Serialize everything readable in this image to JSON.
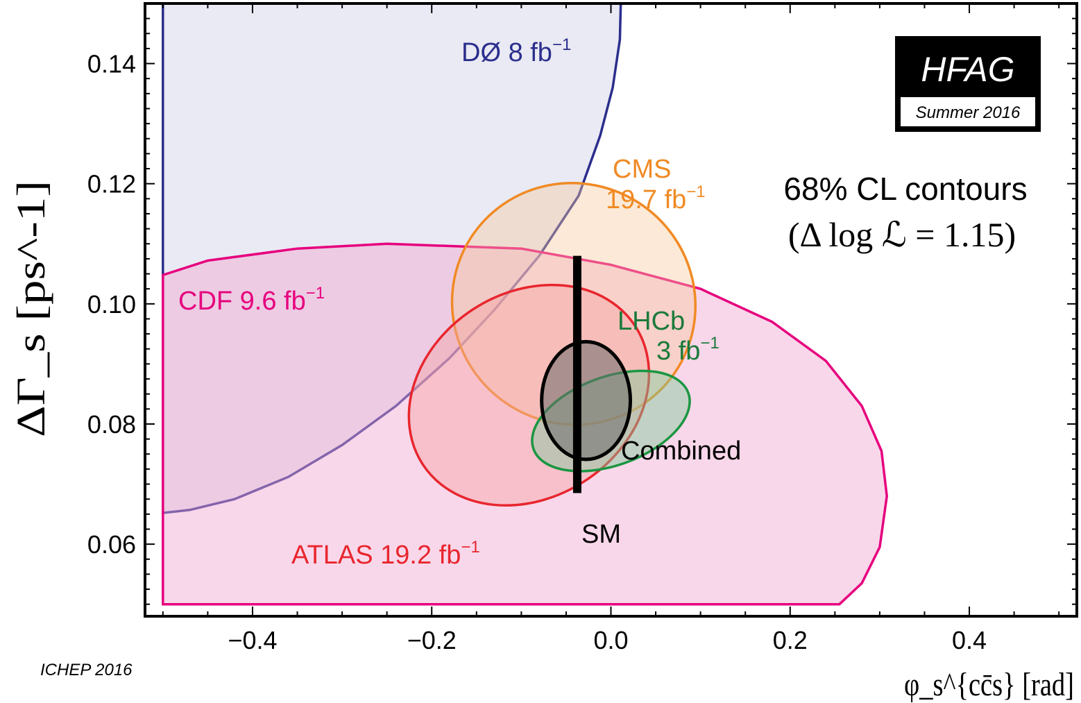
{
  "chart_data": {
    "type": "contour",
    "title": "68% CL contours",
    "subtitle": "(Δ log ℒ = 1.15)",
    "xlabel": "φ_s^{cc̄s} [rad]",
    "ylabel": "ΔΓ_s [ps^-1]",
    "xlim": [
      -0.52,
      0.52
    ],
    "ylim": [
      0.048,
      0.15
    ],
    "xticks": [
      -0.4,
      -0.2,
      0.0,
      0.2,
      0.4
    ],
    "xtick_labels": [
      "−0.4",
      "−0.2",
      "0.0",
      "0.2",
      "0.4"
    ],
    "yticks": [
      0.06,
      0.08,
      0.1,
      0.12,
      0.14
    ],
    "ytick_labels": [
      "0.06",
      "0.08",
      "0.10",
      "0.12",
      "0.14"
    ],
    "badge": {
      "title": "HFAG",
      "subtitle": "Summer 2016"
    },
    "footnote": "ICHEP 2016",
    "sm": {
      "label": "SM",
      "phi": -0.0376,
      "dgamma_min": 0.0685,
      "dgamma_max": 0.108,
      "color": "#000000"
    },
    "series": [
      {
        "name": "DØ",
        "lumi": "8 fb",
        "lumi_exp": "−1",
        "color": "#2b2e8c",
        "fill": "#2b2e8c",
        "fill_opacity": 0.1,
        "points": [
          [
            -0.5,
            0.15
          ],
          [
            0.011,
            0.15
          ],
          [
            0.01,
            0.144
          ],
          [
            0.002,
            0.136
          ],
          [
            -0.012,
            0.128
          ],
          [
            -0.036,
            0.118
          ],
          [
            -0.08,
            0.108
          ],
          [
            -0.13,
            0.099
          ],
          [
            -0.18,
            0.091
          ],
          [
            -0.24,
            0.083
          ],
          [
            -0.3,
            0.0765
          ],
          [
            -0.36,
            0.0712
          ],
          [
            -0.42,
            0.0675
          ],
          [
            -0.47,
            0.0657
          ],
          [
            -0.5,
            0.0652
          ]
        ]
      },
      {
        "name": "CDF",
        "lumi": "9.6 fb",
        "lumi_exp": "−1",
        "color": "#e6007e",
        "fill": "#f2a6d0",
        "fill_opacity": 0.45,
        "points": [
          [
            -0.5,
            0.05
          ],
          [
            0.255,
            0.05
          ],
          [
            0.28,
            0.0535
          ],
          [
            0.3,
            0.0595
          ],
          [
            0.308,
            0.068
          ],
          [
            0.302,
            0.0755
          ],
          [
            0.28,
            0.083
          ],
          [
            0.24,
            0.0905
          ],
          [
            0.18,
            0.097
          ],
          [
            0.1,
            0.1025
          ],
          [
            0.0,
            0.1065
          ],
          [
            -0.1,
            0.1092
          ],
          [
            -0.25,
            0.11
          ],
          [
            -0.35,
            0.1092
          ],
          [
            -0.45,
            0.1072
          ],
          [
            -0.5,
            0.1048
          ]
        ]
      },
      {
        "name": "CMS",
        "lumi": "19.7 fb",
        "lumi_exp": "−1",
        "color": "#f08a24",
        "fill": "#f7c79a",
        "fill_opacity": 0.4,
        "ellipse": {
          "cx": -0.0415,
          "cy": 0.1,
          "rx": 0.1365,
          "ry": 0.02,
          "angle": 33
        }
      },
      {
        "name": "ATLAS",
        "lumi": "19.2 fb",
        "lumi_exp": "−1",
        "color": "#e8262e",
        "fill": "#f4a3a3",
        "fill_opacity": 0.45,
        "ellipse": {
          "cx": -0.0915,
          "cy": 0.0848,
          "rx": 0.1143,
          "ry": 0.0211,
          "angle": 57
        }
      },
      {
        "name": "LHCb",
        "lumi": "3 fb",
        "lumi_exp": "−1",
        "color": "#1a9641",
        "fill": "#7fc99a",
        "fill_opacity": 0.45,
        "ellipse": {
          "cx": 0.0,
          "cy": 0.0805,
          "rx": 0.0493,
          "ry": 0.0137,
          "angle": 70
        }
      },
      {
        "name": "Combined",
        "lumi": "",
        "lumi_exp": "",
        "color": "#000000",
        "fill": "#6b6b6b",
        "fill_opacity": 0.55,
        "ellipse": {
          "cx": -0.0278,
          "cy": 0.0839,
          "rx": 0.0495,
          "ry": 0.0098,
          "angle": 0
        }
      }
    ]
  }
}
